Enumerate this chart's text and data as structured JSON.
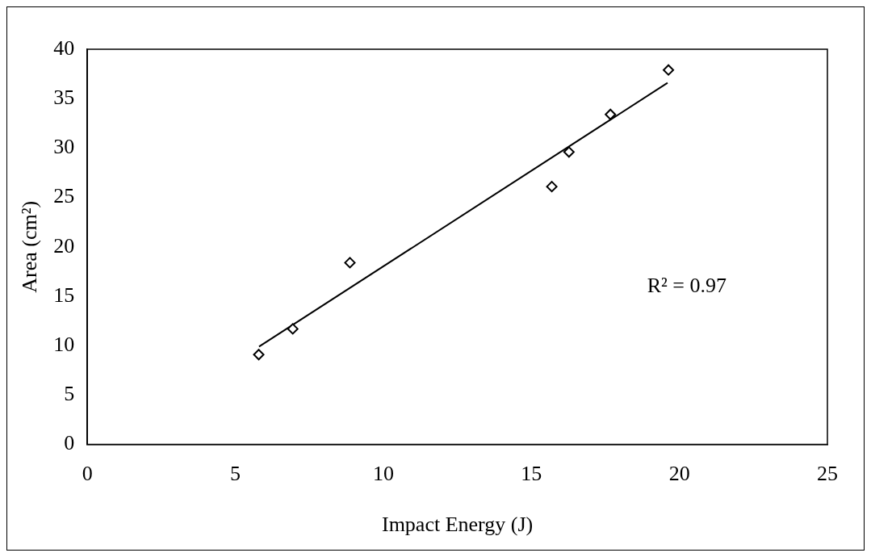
{
  "chart_data": {
    "type": "scatter",
    "xlabel": "Impact Energy (J)",
    "ylabel": "Area (cm²)",
    "xlim": [
      0,
      25
    ],
    "xticks": [
      0,
      5,
      10,
      15,
      20,
      25
    ],
    "ylim": [
      0,
      40
    ],
    "yticks": [
      0,
      5,
      10,
      15,
      20,
      25,
      30,
      35,
      40
    ],
    "grid": false,
    "legend": false,
    "series": [
      {
        "type": "scatter",
        "color": "#000000",
        "marker": "diamond",
        "x": [
          5.79,
          6.94,
          8.87,
          15.69,
          16.27,
          17.67,
          19.63
        ],
        "values": [
          9.1,
          11.7,
          18.4,
          26.1,
          29.6,
          33.4,
          37.9
        ]
      },
      {
        "type": "line",
        "color": "#000000",
        "marker": "none",
        "line_style": "solid",
        "x": [
          5.8,
          19.6
        ],
        "values": [
          9.9,
          36.6
        ]
      }
    ],
    "annotations": [
      "R² = 0.97"
    ]
  }
}
